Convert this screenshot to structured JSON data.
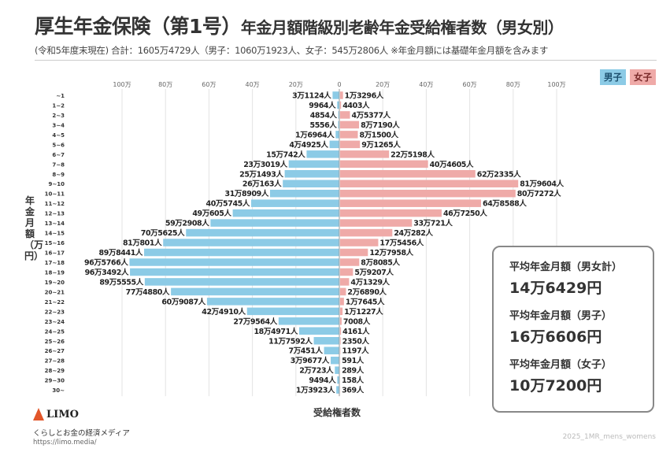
{
  "header": {
    "title_main": "厚生年金保険（第1号）",
    "title_rest": "年金月額階級別老齢年金受給権者数（男女別）",
    "subtitle": "(令和5年度末現在) 合計：1605万4729人（男子：1060万1923人、女子：545万2806人 ※年金月額には基礎年金月額を含みます"
  },
  "colors": {
    "male": "#8ccbe6",
    "female": "#efaaa8",
    "axis": "#999999"
  },
  "chart_data": {
    "type": "bar",
    "orientation": "horizontal-population-pyramid",
    "ylabel": "年金月額（万円）",
    "xlabel": "受給権者数",
    "xlim": [
      -1000000,
      1000000
    ],
    "x_tick_labels_left": [
      "100万",
      "80万",
      "60万",
      "40万",
      "20万"
    ],
    "x_tick_zero": "0",
    "x_tick_labels_right": [
      "20万",
      "40万",
      "60万",
      "80万",
      "100万"
    ],
    "grid": true,
    "legend_placement": "top-right",
    "categories": [
      "~1",
      "1~2",
      "2~3",
      "3~4",
      "4~5",
      "5~6",
      "6~7",
      "7~8",
      "8~9",
      "9~10",
      "10~11",
      "11~12",
      "12~13",
      "13~14",
      "14~15",
      "15~16",
      "16~17",
      "17~18",
      "18~19",
      "19~20",
      "20~21",
      "21~22",
      "22~23",
      "23~24",
      "24~25",
      "25~26",
      "26~27",
      "27~28",
      "28~29",
      "29~30",
      "30~"
    ],
    "series": [
      {
        "name": "男子",
        "values": [
          31124,
          9964,
          4854,
          5556,
          16964,
          44925,
          150742,
          233019,
          251493,
          260163,
          318909,
          405745,
          490605,
          592908,
          705625,
          810801,
          898441,
          965766,
          963492,
          895555,
          774880,
          609087,
          424910,
          279564,
          184971,
          117592,
          70451,
          39677,
          20723,
          9494,
          13923
        ],
        "labels": [
          "3万1124人",
          "9964人",
          "4854人",
          "5556人",
          "1万6964人",
          "4万4925人",
          "15万742人",
          "23万3019人",
          "25万1493人",
          "26万163人",
          "31万8909人",
          "40万5745人",
          "49万605人",
          "59万2908人",
          "70万5625人",
          "81万801人",
          "89万8441人",
          "96万5766人",
          "96万3492人",
          "89万5555人",
          "77万4880人",
          "60万9087人",
          "42万4910人",
          "27万9564人",
          "18万4971人",
          "11万7592人",
          "7万451人",
          "3万9677人",
          "2万723人",
          "9494人",
          "1万3923人"
        ]
      },
      {
        "name": "女子",
        "values": [
          13296,
          4403,
          45377,
          87190,
          81500,
          91265,
          225198,
          404605,
          622335,
          819604,
          807272,
          648588,
          467250,
          330721,
          240282,
          175456,
          127958,
          88085,
          59207,
          41329,
          26890,
          17645,
          11227,
          7008,
          4161,
          2350,
          1197,
          591,
          289,
          158,
          369
        ],
        "labels": [
          "1万3296人",
          "4403人",
          "4万5377人",
          "8万7190人",
          "8万1500人",
          "9万1265人",
          "22万5198人",
          "40万4605人",
          "62万2335人",
          "81万9604人",
          "80万7272人",
          "64万8588人",
          "46万7250人",
          "33万721人",
          "24万282人",
          "17万5456人",
          "12万7958人",
          "8万8085人",
          "5万9207人",
          "4万1329人",
          "2万6890人",
          "1万7645人",
          "1万1227人",
          "7008人",
          "4161人",
          "2350人",
          "1197人",
          "591人",
          "289人",
          "158人",
          "369人"
        ]
      }
    ]
  },
  "summary": {
    "avg_all_label": "平均年金月額（男女計）",
    "avg_all_value": "14万6429円",
    "avg_male_label": "平均年金月額（男子）",
    "avg_male_value": "16万6606円",
    "avg_female_label": "平均年金月額（女子）",
    "avg_female_value": "10万7200円"
  },
  "footer": {
    "logo_text": "LIMO",
    "tagline": "くらしとお金の経済メディア",
    "url": "https://limo.media/",
    "code": "2025_1MR_mens_womens"
  }
}
